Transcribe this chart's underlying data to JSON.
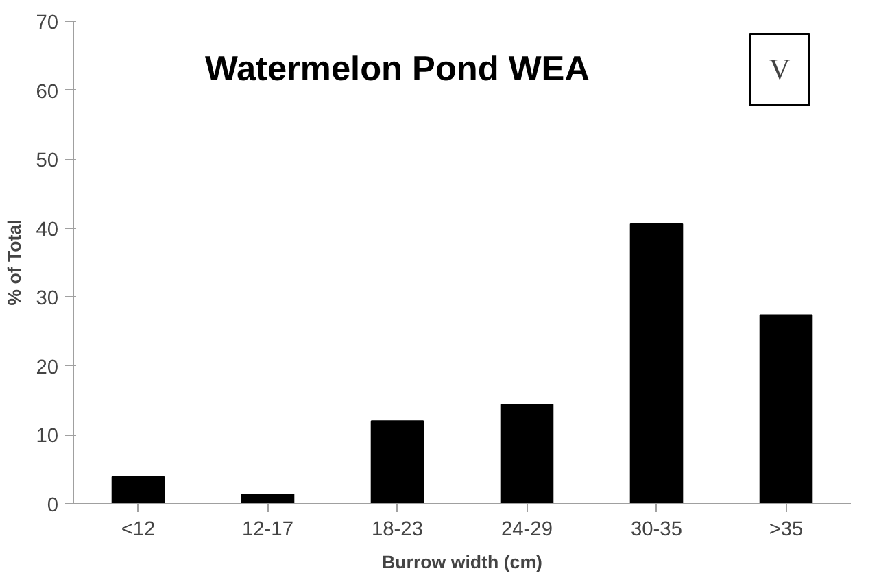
{
  "chart_data": {
    "type": "bar",
    "title": "Watermelon Pond WEA",
    "xlabel": "Burrow width (cm)",
    "ylabel": "% of Total",
    "categories": [
      "<12",
      "12-17",
      "18-23",
      "24-29",
      "30-35",
      ">35"
    ],
    "values": [
      3.9,
      1.4,
      12.0,
      14.4,
      40.6,
      27.4
    ],
    "color": "#000000",
    "ylim": [
      0,
      70
    ],
    "yticks": [
      0,
      10,
      20,
      30,
      40,
      50,
      60,
      70
    ],
    "grid": false,
    "annotations": [
      "V"
    ]
  }
}
